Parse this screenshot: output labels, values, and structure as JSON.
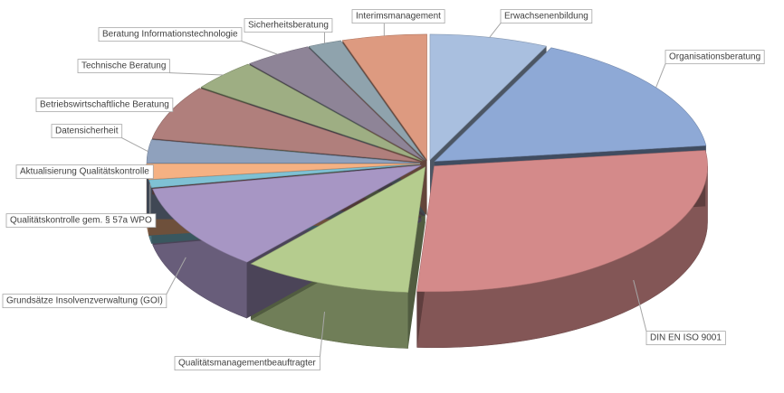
{
  "chart_data": {
    "type": "pie",
    "categories": [
      "Erwachsenenbildung",
      "Organisationsberatung",
      "DIN EN ISO 9001",
      "Qualitätsmanagementbeauftragter",
      "Grundsätze Insolvenzverwaltung (GOI)",
      "Qualitätskontrolle gem. § 57a WPO",
      "Aktualisierung Qualitätskontrolle",
      "Datensicherheit",
      "Betriebswirtschaftliche Beratung",
      "Technische Beratung",
      "Beratung Informationstechnologie",
      "Sicherheitsberatung",
      "Interimsmanagement"
    ],
    "values": [
      7,
      16,
      28,
      10,
      11,
      1,
      2,
      3,
      7,
      4,
      4,
      2,
      5
    ],
    "colors": [
      "#a9bfdf",
      "#8ea9d6",
      "#d48a8a",
      "#b5cc8e",
      "#a796c4",
      "#7fc1d4",
      "#f5b183",
      "#8fa1bd",
      "#b07f7c",
      "#9eae83",
      "#8e8497",
      "#8fa3ad",
      "#dd9a80"
    ]
  }
}
